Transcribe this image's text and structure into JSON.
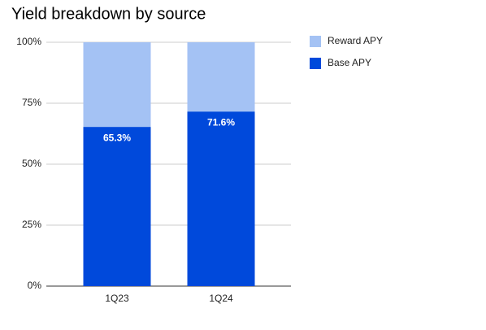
{
  "chart_data": {
    "type": "stacked_bar",
    "title": "Yield breakdown by source",
    "categories": [
      "1Q23",
      "1Q24"
    ],
    "series": [
      {
        "name": "Base APY",
        "color": "#0049db",
        "values": [
          65.3,
          71.6
        ],
        "value_labels": [
          "65.3%",
          "71.6%"
        ]
      },
      {
        "name": "Reward APY",
        "color": "#a4c2f4",
        "values": [
          34.7,
          28.4
        ]
      }
    ],
    "ylim": [
      0,
      100
    ],
    "yticks": [
      {
        "value": 0,
        "label": "0%"
      },
      {
        "value": 25,
        "label": "25%"
      },
      {
        "value": 50,
        "label": "50%"
      },
      {
        "value": 75,
        "label": "75%"
      },
      {
        "value": 100,
        "label": "100%"
      }
    ],
    "grid": true,
    "legend": "right"
  }
}
